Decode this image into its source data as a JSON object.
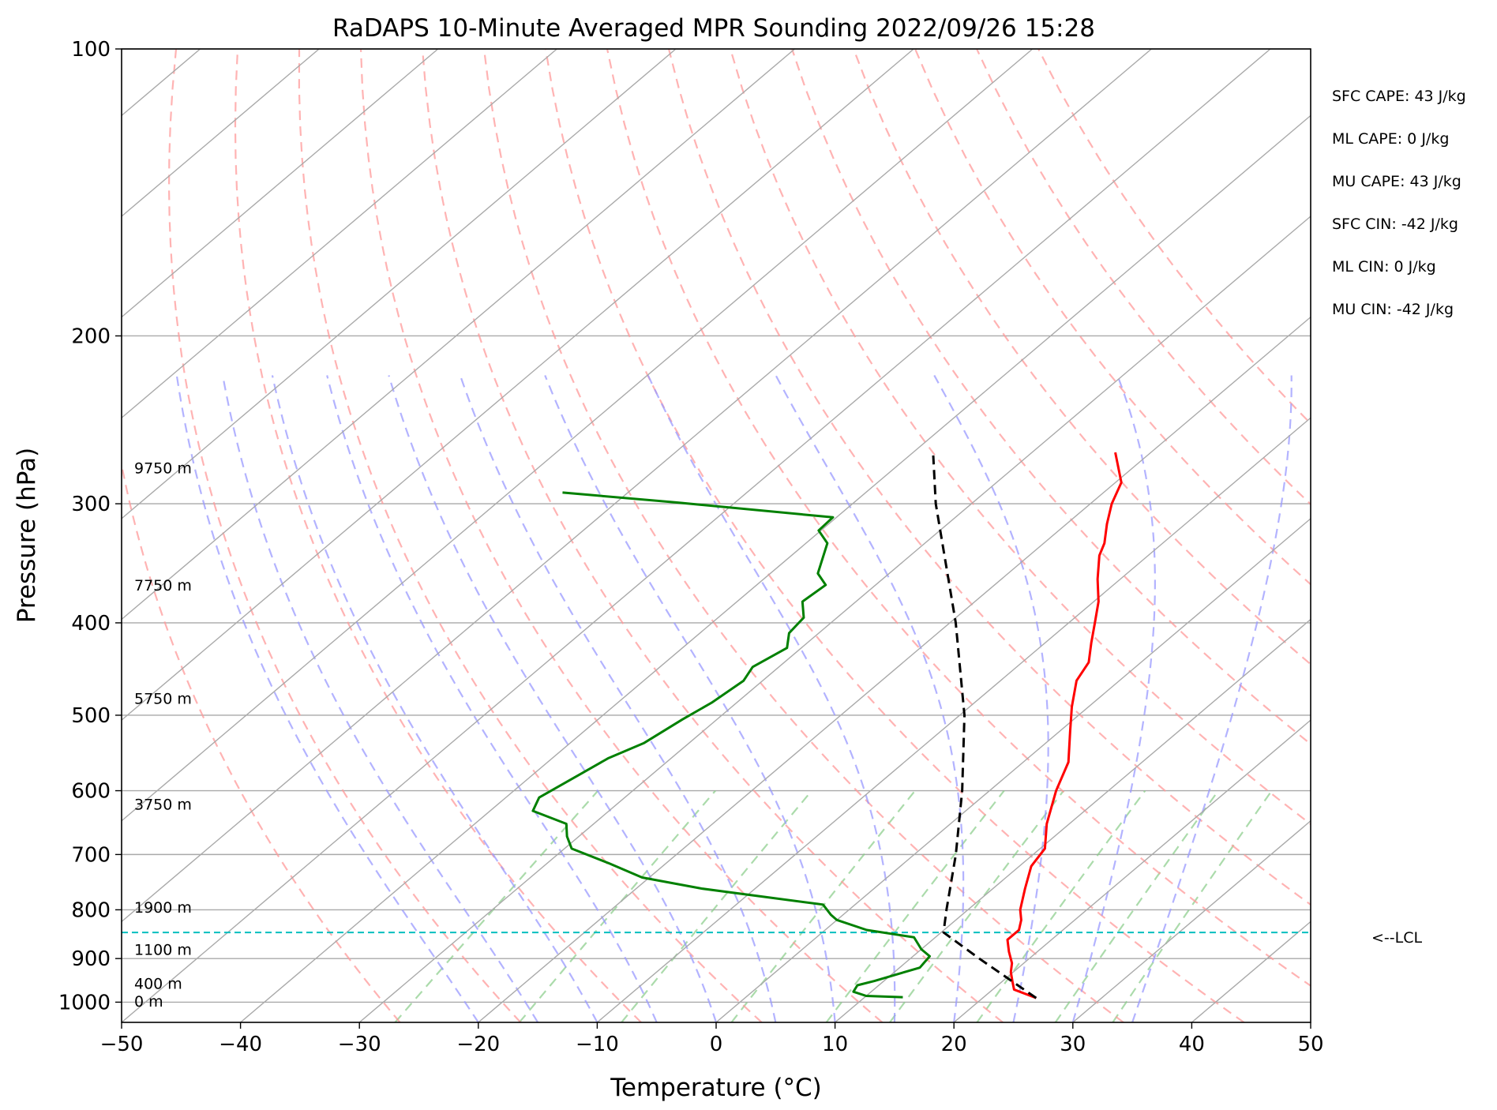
{
  "chart_data": {
    "type": "line",
    "title": "RaDAPS 10-Minute Averaged MPR Sounding 2022/09/26 15:28",
    "xlabel": "Temperature (°C)",
    "ylabel": "Pressure (hPa)",
    "xlim": [
      -50,
      50
    ],
    "ylim": [
      1050,
      100
    ],
    "y_scale": "log",
    "skew": "skew-T",
    "grid": true,
    "x_ticks": [
      -50,
      -40,
      -30,
      -20,
      -10,
      0,
      10,
      20,
      30,
      40,
      50
    ],
    "x_tick_labels": [
      "−50",
      "−40",
      "−30",
      "−20",
      "−10",
      "0",
      "10",
      "20",
      "30",
      "40",
      "50"
    ],
    "y_ticks": [
      100,
      200,
      300,
      400,
      500,
      600,
      700,
      800,
      900,
      1000
    ],
    "y_tick_labels": [
      "100",
      "200",
      "300",
      "400",
      "500",
      "600",
      "700",
      "800",
      "900",
      "1000"
    ],
    "series": [
      {
        "role": "temperature",
        "color": "#ff0000",
        "style": "solid",
        "points": [
          {
            "p": 990,
            "t": 24.5
          },
          {
            "p": 970,
            "t": 21.8
          },
          {
            "p": 950,
            "t": 20.8
          },
          {
            "p": 930,
            "t": 19.8
          },
          {
            "p": 910,
            "t": 19.0
          },
          {
            "p": 885,
            "t": 17.6
          },
          {
            "p": 860,
            "t": 16.3
          },
          {
            "p": 840,
            "t": 16.3
          },
          {
            "p": 820,
            "t": 15.5
          },
          {
            "p": 800,
            "t": 14.4
          },
          {
            "p": 760,
            "t": 12.7
          },
          {
            "p": 720,
            "t": 11.0
          },
          {
            "p": 690,
            "t": 10.4
          },
          {
            "p": 650,
            "t": 8.1
          },
          {
            "p": 600,
            "t": 5.6
          },
          {
            "p": 560,
            "t": 3.8
          },
          {
            "p": 520,
            "t": 0.9
          },
          {
            "p": 490,
            "t": -1.4
          },
          {
            "p": 460,
            "t": -3.6
          },
          {
            "p": 440,
            "t": -4.4
          },
          {
            "p": 420,
            "t": -6.1
          },
          {
            "p": 400,
            "t": -7.8
          },
          {
            "p": 380,
            "t": -9.6
          },
          {
            "p": 360,
            "t": -11.9
          },
          {
            "p": 340,
            "t": -14.1
          },
          {
            "p": 330,
            "t": -14.9
          },
          {
            "p": 315,
            "t": -16.6
          },
          {
            "p": 300,
            "t": -18.2
          },
          {
            "p": 285,
            "t": -19.5
          },
          {
            "p": 265,
            "t": -23.0
          }
        ]
      },
      {
        "role": "dewpoint",
        "color": "#008000",
        "style": "solid",
        "points": [
          {
            "p": 988,
            "t": 13.2
          },
          {
            "p": 985,
            "t": 10.0
          },
          {
            "p": 975,
            "t": 8.5
          },
          {
            "p": 960,
            "t": 8.2
          },
          {
            "p": 950,
            "t": 9.2
          },
          {
            "p": 920,
            "t": 11.7
          },
          {
            "p": 895,
            "t": 11.4
          },
          {
            "p": 880,
            "t": 10.0
          },
          {
            "p": 855,
            "t": 8.2
          },
          {
            "p": 840,
            "t": 3.5
          },
          {
            "p": 820,
            "t": 0.0
          },
          {
            "p": 810,
            "t": -1.0
          },
          {
            "p": 790,
            "t": -2.7
          },
          {
            "p": 760,
            "t": -14.5
          },
          {
            "p": 740,
            "t": -20.6
          },
          {
            "p": 715,
            "t": -24.8
          },
          {
            "p": 690,
            "t": -29.4
          },
          {
            "p": 670,
            "t": -31.0
          },
          {
            "p": 650,
            "t": -32.3
          },
          {
            "p": 630,
            "t": -36.4
          },
          {
            "p": 610,
            "t": -37.2
          },
          {
            "p": 575,
            "t": -36.0
          },
          {
            "p": 555,
            "t": -35.3
          },
          {
            "p": 535,
            "t": -33.8
          },
          {
            "p": 505,
            "t": -32.9
          },
          {
            "p": 485,
            "t": -32.1
          },
          {
            "p": 460,
            "t": -31.6
          },
          {
            "p": 445,
            "t": -32.2
          },
          {
            "p": 425,
            "t": -31.2
          },
          {
            "p": 410,
            "t": -32.5
          },
          {
            "p": 395,
            "t": -32.8
          },
          {
            "p": 380,
            "t": -34.5
          },
          {
            "p": 365,
            "t": -34.2
          },
          {
            "p": 355,
            "t": -36.0
          },
          {
            "p": 330,
            "t": -38.2
          },
          {
            "p": 320,
            "t": -40.2
          },
          {
            "p": 310,
            "t": -40.3
          },
          {
            "p": 299,
            "t": -55.0
          },
          {
            "p": 292,
            "t": -65.5
          }
        ]
      },
      {
        "role": "parcel",
        "color": "#000000",
        "style": "dashed",
        "points": [
          {
            "p": 990,
            "t": 24.5
          },
          {
            "p": 900,
            "t": 15.8
          },
          {
            "p": 845,
            "t": 10.2
          },
          {
            "p": 800,
            "t": 8.2
          },
          {
            "p": 700,
            "t": 3.5
          },
          {
            "p": 600,
            "t": -2.3
          },
          {
            "p": 500,
            "t": -9.6
          },
          {
            "p": 400,
            "t": -19.5
          },
          {
            "p": 300,
            "t": -33.0
          },
          {
            "p": 267,
            "t": -38.0
          }
        ]
      }
    ],
    "lcl": {
      "p": 845,
      "label": "<--LCL",
      "color": "#00bfbf"
    },
    "height_labels": [
      {
        "p": 275,
        "text": "9750 m"
      },
      {
        "p": 365,
        "text": "7750 m"
      },
      {
        "p": 480,
        "text": "5750 m"
      },
      {
        "p": 620,
        "text": "3750 m"
      },
      {
        "p": 795,
        "text": "1900 m"
      },
      {
        "p": 880,
        "text": "1100 m"
      },
      {
        "p": 955,
        "text": "400 m"
      },
      {
        "p": 997,
        "text": "0 m"
      }
    ],
    "stats": [
      "SFC CAPE: 43 J/kg",
      "ML CAPE: 0 J/kg",
      "MU CAPE: 43 J/kg",
      "SFC CIN: -42 J/kg",
      "ML CIN: 0 J/kg",
      "MU CIN: -42 J/kg"
    ],
    "background_lines": {
      "isotherms": {
        "color": "#a9a9a9",
        "values": [
          -150,
          -140,
          -130,
          -120,
          -110,
          -100,
          -90,
          -80,
          -70,
          -60,
          -50,
          -40,
          -30,
          -20,
          -10,
          0,
          10,
          20,
          30,
          40,
          50
        ]
      },
      "dry_adiabats": {
        "color": "#ff9999",
        "theta_c": [
          -30,
          -20,
          -10,
          0,
          10,
          20,
          30,
          40,
          50,
          60,
          70,
          80,
          90,
          100,
          110,
          120
        ]
      },
      "moist_adiabats": {
        "color": "#9999ff",
        "start_t_c": [
          -20,
          -15,
          -10,
          -5,
          0,
          5,
          10,
          15,
          20,
          25,
          30,
          35
        ]
      },
      "mixing_ratio": {
        "color": "#88cc88",
        "w_gkg": [
          0.4,
          1,
          2,
          4,
          7,
          10,
          16,
          24,
          32
        ]
      }
    }
  }
}
